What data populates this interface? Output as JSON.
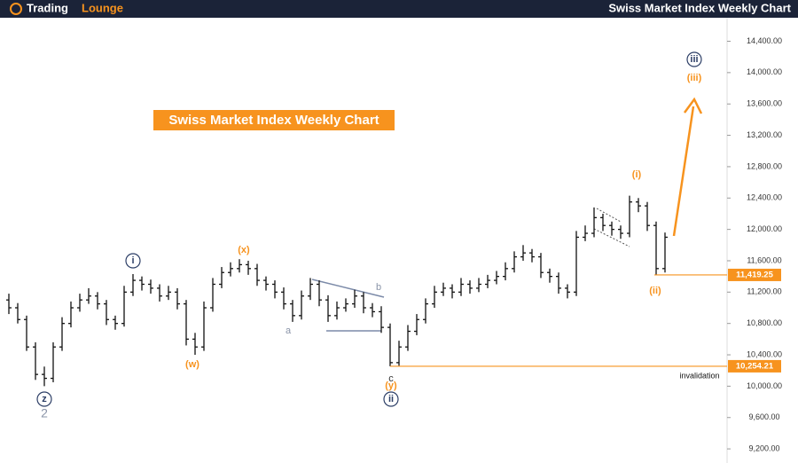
{
  "header": {
    "logo": [
      "Trading",
      "Lounge"
    ],
    "title": "Swiss Market Index Weekly Chart"
  },
  "chart_data": {
    "type": "ohlc",
    "title": "Swiss Market Index Weekly Chart",
    "candles": [
      [
        11100,
        11180,
        10920,
        11000
      ],
      [
        11000,
        11060,
        10800,
        10850
      ],
      [
        10850,
        10900,
        10450,
        10500
      ],
      [
        10500,
        10560,
        10080,
        10150
      ],
      [
        10150,
        10250,
        10000,
        10100
      ],
      [
        10100,
        10560,
        10050,
        10500
      ],
      [
        10500,
        10880,
        10450,
        10800
      ],
      [
        10800,
        11080,
        10750,
        11000
      ],
      [
        11000,
        11180,
        10950,
        11100
      ],
      [
        11100,
        11250,
        11050,
        11150
      ],
      [
        11150,
        11200,
        10980,
        11050
      ],
      [
        11050,
        11100,
        10780,
        10850
      ],
      [
        10850,
        10900,
        10720,
        10800
      ],
      [
        10800,
        11280,
        10760,
        11200
      ],
      [
        11200,
        11430,
        11150,
        11350
      ],
      [
        11350,
        11400,
        11220,
        11300
      ],
      [
        11300,
        11360,
        11180,
        11250
      ],
      [
        11250,
        11300,
        11080,
        11150
      ],
      [
        11150,
        11280,
        11100,
        11200
      ],
      [
        11200,
        11250,
        10980,
        11050
      ],
      [
        11050,
        11100,
        10520,
        10600
      ],
      [
        10600,
        10680,
        10400,
        10500
      ],
      [
        10500,
        11080,
        10450,
        11000
      ],
      [
        11000,
        11380,
        10950,
        11300
      ],
      [
        11300,
        11520,
        11250,
        11450
      ],
      [
        11450,
        11580,
        11400,
        11500
      ],
      [
        11500,
        11620,
        11450,
        11550
      ],
      [
        11550,
        11600,
        11420,
        11500
      ],
      [
        11500,
        11560,
        11280,
        11350
      ],
      [
        11350,
        11400,
        11220,
        11300
      ],
      [
        11300,
        11350,
        11120,
        11200
      ],
      [
        11200,
        11260,
        10980,
        11050
      ],
      [
        11050,
        11100,
        10820,
        10900
      ],
      [
        10900,
        11220,
        10850,
        11150
      ],
      [
        11150,
        11380,
        11100,
        11300
      ],
      [
        11300,
        11350,
        11020,
        11100
      ],
      [
        11100,
        11160,
        10820,
        10900
      ],
      [
        10900,
        11080,
        10850,
        11000
      ],
      [
        11000,
        11120,
        10950,
        11050
      ],
      [
        11050,
        11230,
        11000,
        11150
      ],
      [
        11150,
        11200,
        10930,
        11000
      ],
      [
        11000,
        11060,
        10880,
        10950
      ],
      [
        10950,
        11020,
        10680,
        10750
      ],
      [
        10750,
        10800,
        10254,
        10300
      ],
      [
        10300,
        10580,
        10260,
        10500
      ],
      [
        10500,
        10780,
        10450,
        10700
      ],
      [
        10700,
        10920,
        10650,
        10850
      ],
      [
        10850,
        11120,
        10800,
        11050
      ],
      [
        11050,
        11280,
        11000,
        11200
      ],
      [
        11200,
        11320,
        11150,
        11250
      ],
      [
        11250,
        11300,
        11120,
        11200
      ],
      [
        11200,
        11380,
        11150,
        11300
      ],
      [
        11300,
        11350,
        11180,
        11250
      ],
      [
        11250,
        11380,
        11200,
        11300
      ],
      [
        11300,
        11420,
        11250,
        11350
      ],
      [
        11350,
        11470,
        11300,
        11400
      ],
      [
        11400,
        11580,
        11350,
        11500
      ],
      [
        11500,
        11720,
        11450,
        11650
      ],
      [
        11650,
        11800,
        11600,
        11700
      ],
      [
        11700,
        11750,
        11580,
        11650
      ],
      [
        11650,
        11700,
        11380,
        11450
      ],
      [
        11450,
        11500,
        11320,
        11400
      ],
      [
        11400,
        11450,
        11180,
        11250
      ],
      [
        11250,
        11300,
        11120,
        11200
      ],
      [
        11200,
        11980,
        11150,
        11900
      ],
      [
        11900,
        12050,
        11850,
        11950
      ],
      [
        11950,
        12280,
        11900,
        12150
      ],
      [
        12150,
        12200,
        11980,
        12050
      ],
      [
        12050,
        12100,
        11920,
        12000
      ],
      [
        12000,
        12050,
        11880,
        11950
      ],
      [
        11950,
        12430,
        11900,
        12350
      ],
      [
        12350,
        12400,
        12220,
        12300
      ],
      [
        12300,
        12350,
        11980,
        12050
      ],
      [
        12050,
        12100,
        11419,
        11500
      ],
      [
        11500,
        11960,
        11450,
        11900
      ]
    ],
    "ylim": [
      9020,
      14700
    ],
    "yticks": [
      {
        "value": 9200,
        "label": "9,200.00"
      },
      {
        "value": 9600,
        "label": "9,600.00"
      },
      {
        "value": 10000,
        "label": "10,000.00"
      },
      {
        "value": 10400,
        "label": "10,400.00"
      },
      {
        "value": 10800,
        "label": "10,800.00"
      },
      {
        "value": 11200,
        "label": "11,200.00"
      },
      {
        "value": 11600,
        "label": "11,600.00"
      },
      {
        "value": 12000,
        "label": "12,000.00"
      },
      {
        "value": 12400,
        "label": "12,400.00"
      },
      {
        "value": 12800,
        "label": "12,800.00"
      },
      {
        "value": 13200,
        "label": "13,200.00"
      },
      {
        "value": 13600,
        "label": "13,600.00"
      },
      {
        "value": 14000,
        "label": "14,000.00"
      },
      {
        "value": 14400,
        "label": "14,400.00"
      }
    ],
    "levels": [
      {
        "value": 11419.25,
        "label": "11,419.25"
      },
      {
        "value": 10254.21,
        "label": "10,254.21"
      }
    ],
    "annotations": [
      "z",
      "2",
      "i",
      "(w)",
      "(x)",
      "a",
      "b",
      "c",
      "(y)",
      "ii",
      "(i)",
      "(ii)",
      "iii",
      "(iii)",
      "invalidation"
    ],
    "color": "#111111",
    "level_color": "#f7931e"
  }
}
